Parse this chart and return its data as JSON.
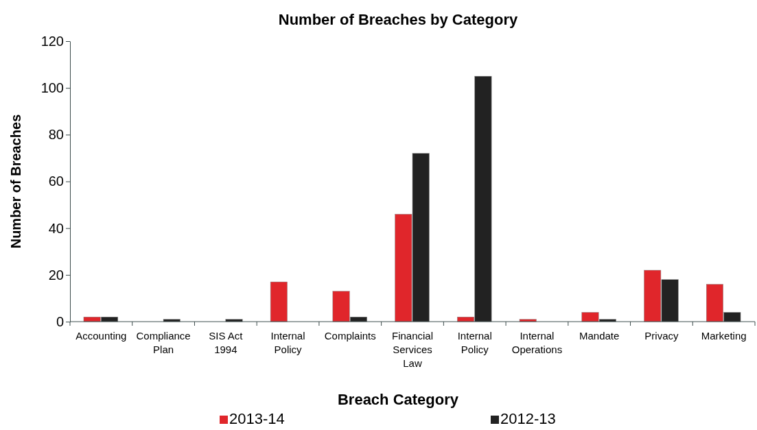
{
  "chart_data": {
    "type": "bar",
    "title": "Number of Breaches by Category",
    "xlabel": "Breach Category",
    "ylabel": "Number of Breaches",
    "categories": [
      "Accounting",
      "Compliance Plan",
      "SIS Act 1994",
      "Internal Policy",
      "Complaints",
      "Financial Services Law",
      "Internal Policy",
      "Internal Operations",
      "Mandate",
      "Privacy",
      "Marketing"
    ],
    "series": [
      {
        "name": "2013-14",
        "color": "#e0262b",
        "values": [
          2,
          0,
          0,
          17,
          13,
          46,
          2,
          1,
          4,
          22,
          16
        ]
      },
      {
        "name": "2012-13",
        "color": "#222222",
        "values": [
          2,
          1,
          1,
          0,
          2,
          72,
          105,
          0,
          1,
          18,
          4
        ]
      }
    ],
    "ylim": [
      0,
      120
    ],
    "yticks": [
      0,
      20,
      40,
      60,
      80,
      100,
      120
    ],
    "grid": false,
    "legend": "bottom"
  }
}
